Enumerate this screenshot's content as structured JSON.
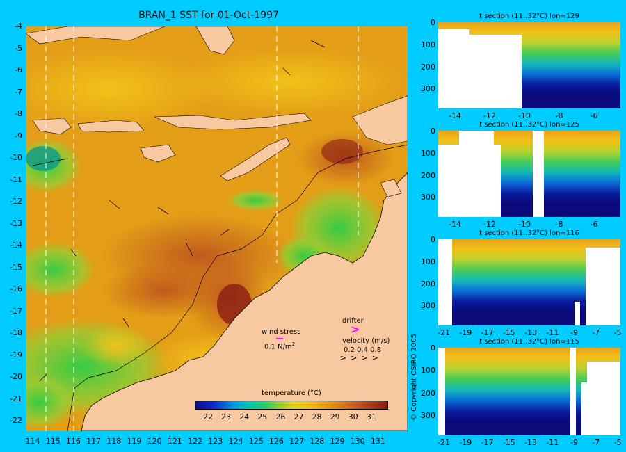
{
  "title": "BRAN_1 SST for 01-Oct-1997",
  "map": {
    "lat_labels": [
      "-4",
      "-5",
      "-6",
      "-7",
      "-8",
      "-9",
      "-10",
      "-11",
      "-12",
      "-13",
      "-14",
      "-15",
      "-16",
      "-17",
      "-18",
      "-19",
      "-20",
      "-21",
      "-22"
    ],
    "lon_labels": [
      "114",
      "115",
      "116",
      "117",
      "118",
      "119",
      "120",
      "121",
      "122",
      "123",
      "124",
      "125",
      "126",
      "127",
      "128",
      "129",
      "130",
      "131"
    ],
    "wind_stress_label": "wind stress",
    "wind_stress_value": "0.1 N/m",
    "wind_stress_exp": "2",
    "drifter_label": "drifter",
    "velocity_label": "velocity (m/s)",
    "velocity_values": "0.2 0.4 0.8",
    "colorbar_title": "temperature (°C)",
    "colorbar_labels": [
      "22",
      "23",
      "24",
      "25",
      "26",
      "27",
      "28",
      "29",
      "30",
      "31"
    ],
    "colors": {
      "land": "#f8c9a0",
      "background": "#00ccff",
      "drifter": "#ff00ff"
    }
  },
  "sections": [
    {
      "title": "t section (11..32°C) lon=129",
      "y_labels": [
        "0",
        "100",
        "200",
        "300"
      ],
      "x_labels": [
        "-14",
        "-12",
        "-10",
        "-8",
        "-6"
      ]
    },
    {
      "title": "t section (11..32°C) lon=125",
      "y_labels": [
        "0",
        "100",
        "200",
        "300"
      ],
      "x_labels": [
        "-14",
        "-12",
        "-10",
        "-8",
        "-6"
      ]
    },
    {
      "title": "t section (11..32°C) lon=116",
      "y_labels": [
        "0",
        "100",
        "200",
        "300"
      ],
      "x_labels": [
        "-21",
        "-19",
        "-17",
        "-15",
        "-13",
        "-11",
        "-9",
        "-7",
        "-5"
      ]
    },
    {
      "title": "t section (11..32°C) lon=115",
      "y_labels": [
        "0",
        "100",
        "200",
        "300"
      ],
      "x_labels": [
        "-21",
        "-19",
        "-17",
        "-15",
        "-13",
        "-11",
        "-9",
        "-7",
        "-5"
      ]
    }
  ],
  "copyright": "© Copyright CSIRO 2005"
}
